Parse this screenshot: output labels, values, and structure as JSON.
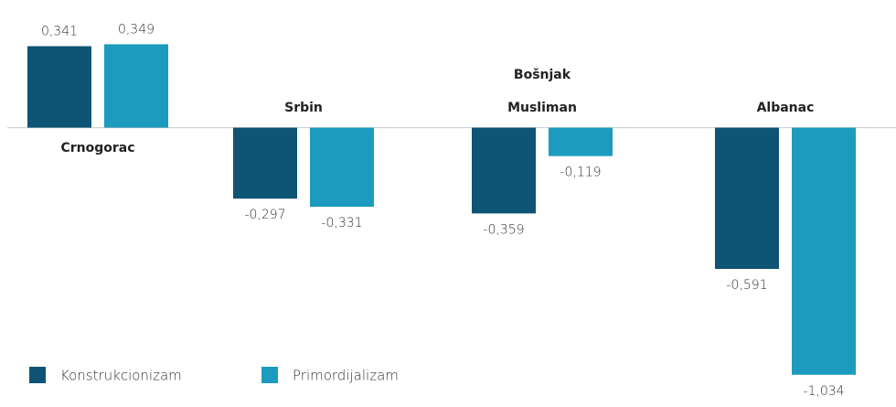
{
  "chart_data": {
    "type": "bar",
    "categories": [
      "Crnogorac",
      "Srbin",
      "Bošnjak Musliman",
      "Albanac"
    ],
    "series": [
      {
        "name": "Konstrukcionizam",
        "color": "#0e5474",
        "values": [
          0.341,
          -0.297,
          -0.359,
          -0.591
        ],
        "value_labels": [
          "0,341",
          "-0,297",
          "-0,359",
          "-0,591"
        ]
      },
      {
        "name": "Primordijalizam",
        "color": "#1d9bbf",
        "values": [
          0.349,
          -0.331,
          -0.119,
          -1.034
        ],
        "value_labels": [
          "0,349",
          "-0,331",
          "-0,119",
          "-1,034"
        ]
      }
    ],
    "ylim": [
      -1.1,
      0.45
    ]
  }
}
